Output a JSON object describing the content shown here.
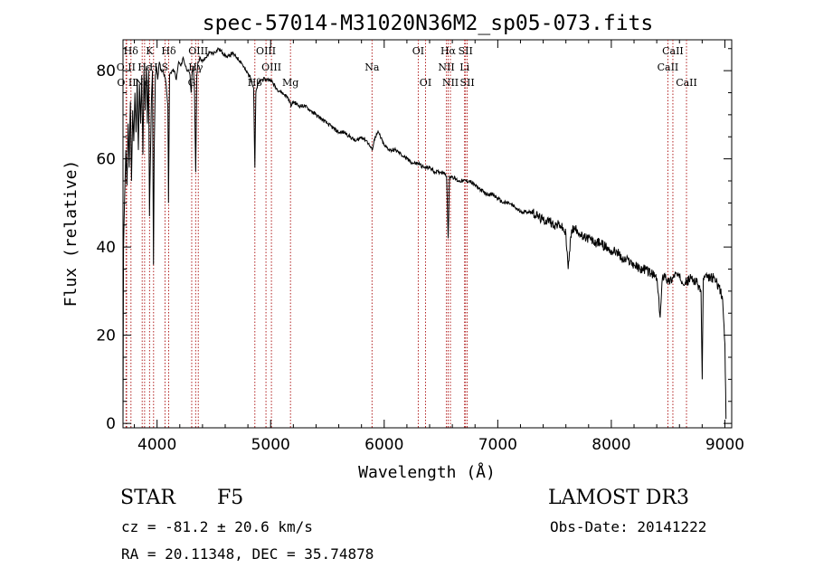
{
  "chart_data": {
    "type": "line",
    "title": "spec-57014-M31020N36M2_sp05-073.fits",
    "xlabel": "Wavelength (Å)",
    "ylabel": "Flux (relative)",
    "xlim": [
      3700,
      9060
    ],
    "ylim": [
      -1,
      87
    ],
    "xticks": [
      4000,
      5000,
      6000,
      7000,
      8000,
      9000
    ],
    "yticks": [
      0,
      20,
      40,
      60,
      80
    ],
    "grid": false,
    "line_color": "#000000",
    "marker_color": "#b22222",
    "series": [
      {
        "name": "flux",
        "x": [
          3700,
          3705,
          3715,
          3725,
          3735,
          3745,
          3755,
          3765,
          3775,
          3785,
          3795,
          3805,
          3815,
          3825,
          3835,
          3845,
          3855,
          3865,
          3875,
          3885,
          3895,
          3905,
          3915,
          3925,
          3933,
          3940,
          3950,
          3960,
          3968,
          3975,
          3985,
          3995,
          4005,
          4020,
          4035,
          4050,
          4065,
          4080,
          4095,
          4101,
          4110,
          4130,
          4150,
          4170,
          4190,
          4210,
          4230,
          4250,
          4270,
          4290,
          4300,
          4310,
          4320,
          4330,
          4340,
          4350,
          4360,
          4380,
          4400,
          4430,
          4460,
          4500,
          4540,
          4580,
          4620,
          4660,
          4700,
          4740,
          4780,
          4810,
          4830,
          4850,
          4861,
          4870,
          4890,
          4920,
          4950,
          5000,
          5050,
          5100,
          5150,
          5183,
          5200,
          5250,
          5300,
          5350,
          5400,
          5450,
          5500,
          5550,
          5600,
          5650,
          5700,
          5750,
          5800,
          5850,
          5893,
          5920,
          5950,
          6000,
          6050,
          6100,
          6150,
          6200,
          6250,
          6300,
          6350,
          6400,
          6450,
          6500,
          6530,
          6550,
          6563,
          6575,
          6600,
          6650,
          6700,
          6750,
          6800,
          6850,
          6900,
          6950,
          7000,
          7050,
          7100,
          7150,
          7200,
          7250,
          7300,
          7350,
          7400,
          7450,
          7500,
          7550,
          7600,
          7620,
          7650,
          7700,
          7750,
          7800,
          7850,
          7900,
          7950,
          8000,
          8050,
          8100,
          8150,
          8200,
          8250,
          8300,
          8350,
          8400,
          8430,
          8450,
          8470,
          8500,
          8542,
          8560,
          8600,
          8662,
          8700,
          8750,
          8790,
          8800,
          8810,
          8850,
          8900,
          8950,
          8980,
          9000,
          9010
        ],
        "y": [
          0,
          40,
          52,
          62,
          54,
          68,
          58,
          73,
          55,
          71,
          64,
          75,
          66,
          78,
          62,
          77,
          68,
          79,
          61,
          80,
          71,
          81,
          68,
          80,
          47,
          58,
          73,
          80,
          36,
          62,
          79,
          81,
          78,
          82,
          80,
          80,
          79,
          77,
          72,
          50,
          79,
          80,
          80,
          78,
          82,
          81,
          83,
          81,
          80,
          79,
          75,
          80,
          81,
          75,
          57,
          79,
          82,
          83,
          82,
          83,
          84,
          84,
          85,
          84,
          83,
          84,
          83,
          82,
          80,
          79,
          78,
          76,
          58,
          75,
          77,
          78,
          78,
          78,
          76,
          75,
          74,
          72,
          73,
          72,
          72,
          71,
          70,
          69,
          68,
          67,
          66,
          66,
          65,
          64,
          65,
          64,
          62,
          65,
          66,
          63,
          62,
          62,
          61,
          60,
          59,
          59,
          58,
          58,
          57,
          57,
          57,
          56,
          42,
          56,
          56,
          55,
          55,
          55,
          54,
          53,
          52,
          52,
          51,
          50,
          50,
          49,
          48,
          48,
          48,
          47,
          46,
          46,
          45,
          45,
          43,
          35,
          44,
          44,
          42,
          42,
          41,
          41,
          40,
          39,
          39,
          37,
          37,
          36,
          35,
          35,
          34,
          33,
          24,
          33,
          34,
          32,
          33,
          34,
          33,
          32,
          33,
          32,
          30,
          10,
          33,
          33,
          33,
          31,
          28,
          18,
          1
        ]
      }
    ],
    "lines": [
      {
        "label": "Hδ",
        "x": 3770,
        "row": 0
      },
      {
        "label": "O II",
        "x": 3727,
        "row": 1
      },
      {
        "label": "O II",
        "x": 3732,
        "row": 2
      },
      {
        "label": "K",
        "x": 3934,
        "row": 0
      },
      {
        "label": "H",
        "x": 3969,
        "row": 1
      },
      {
        "label": "Hε",
        "x": 3890,
        "row": 1
      },
      {
        "label": "Ne",
        "x": 3869,
        "row": 2
      },
      {
        "label": "Hδ",
        "x": 4102,
        "row": 0
      },
      {
        "label": "S",
        "x": 4070,
        "row": 1
      },
      {
        "label": "G",
        "x": 4305,
        "row": 2
      },
      {
        "label": "OIII",
        "x": 4363,
        "row": 0
      },
      {
        "label": "Hγ",
        "x": 4340,
        "row": 1
      },
      {
        "label": "OIII",
        "x": 4959,
        "row": 0
      },
      {
        "label": "OIII",
        "x": 5007,
        "row": 1
      },
      {
        "label": "Hβ",
        "x": 4861,
        "row": 2
      },
      {
        "label": "Mg",
        "x": 5175,
        "row": 2
      },
      {
        "label": "Na",
        "x": 5893,
        "row": 1
      },
      {
        "label": "OI",
        "x": 6300,
        "row": 0
      },
      {
        "label": "OI",
        "x": 6364,
        "row": 2
      },
      {
        "label": "Hα",
        "x": 6563,
        "row": 0
      },
      {
        "label": "NII",
        "x": 6548,
        "row": 1
      },
      {
        "label": "NII",
        "x": 6583,
        "row": 2
      },
      {
        "label": "SII",
        "x": 6716,
        "row": 0
      },
      {
        "label": "Li",
        "x": 6708,
        "row": 1
      },
      {
        "label": "SII",
        "x": 6731,
        "row": 2
      },
      {
        "label": "CaII",
        "x": 8542,
        "row": 0
      },
      {
        "label": "CaII",
        "x": 8498,
        "row": 1
      },
      {
        "label": "CaII",
        "x": 8662,
        "row": 2
      }
    ]
  },
  "info": {
    "object_type": "STAR",
    "subclass": "F5",
    "survey": "LAMOST DR3",
    "cz": "cz = -81.2 ± 20.6 km/s",
    "obs_date": "Obs-Date: 20141222",
    "coords": "RA =  20.11348, DEC =  35.74878"
  }
}
